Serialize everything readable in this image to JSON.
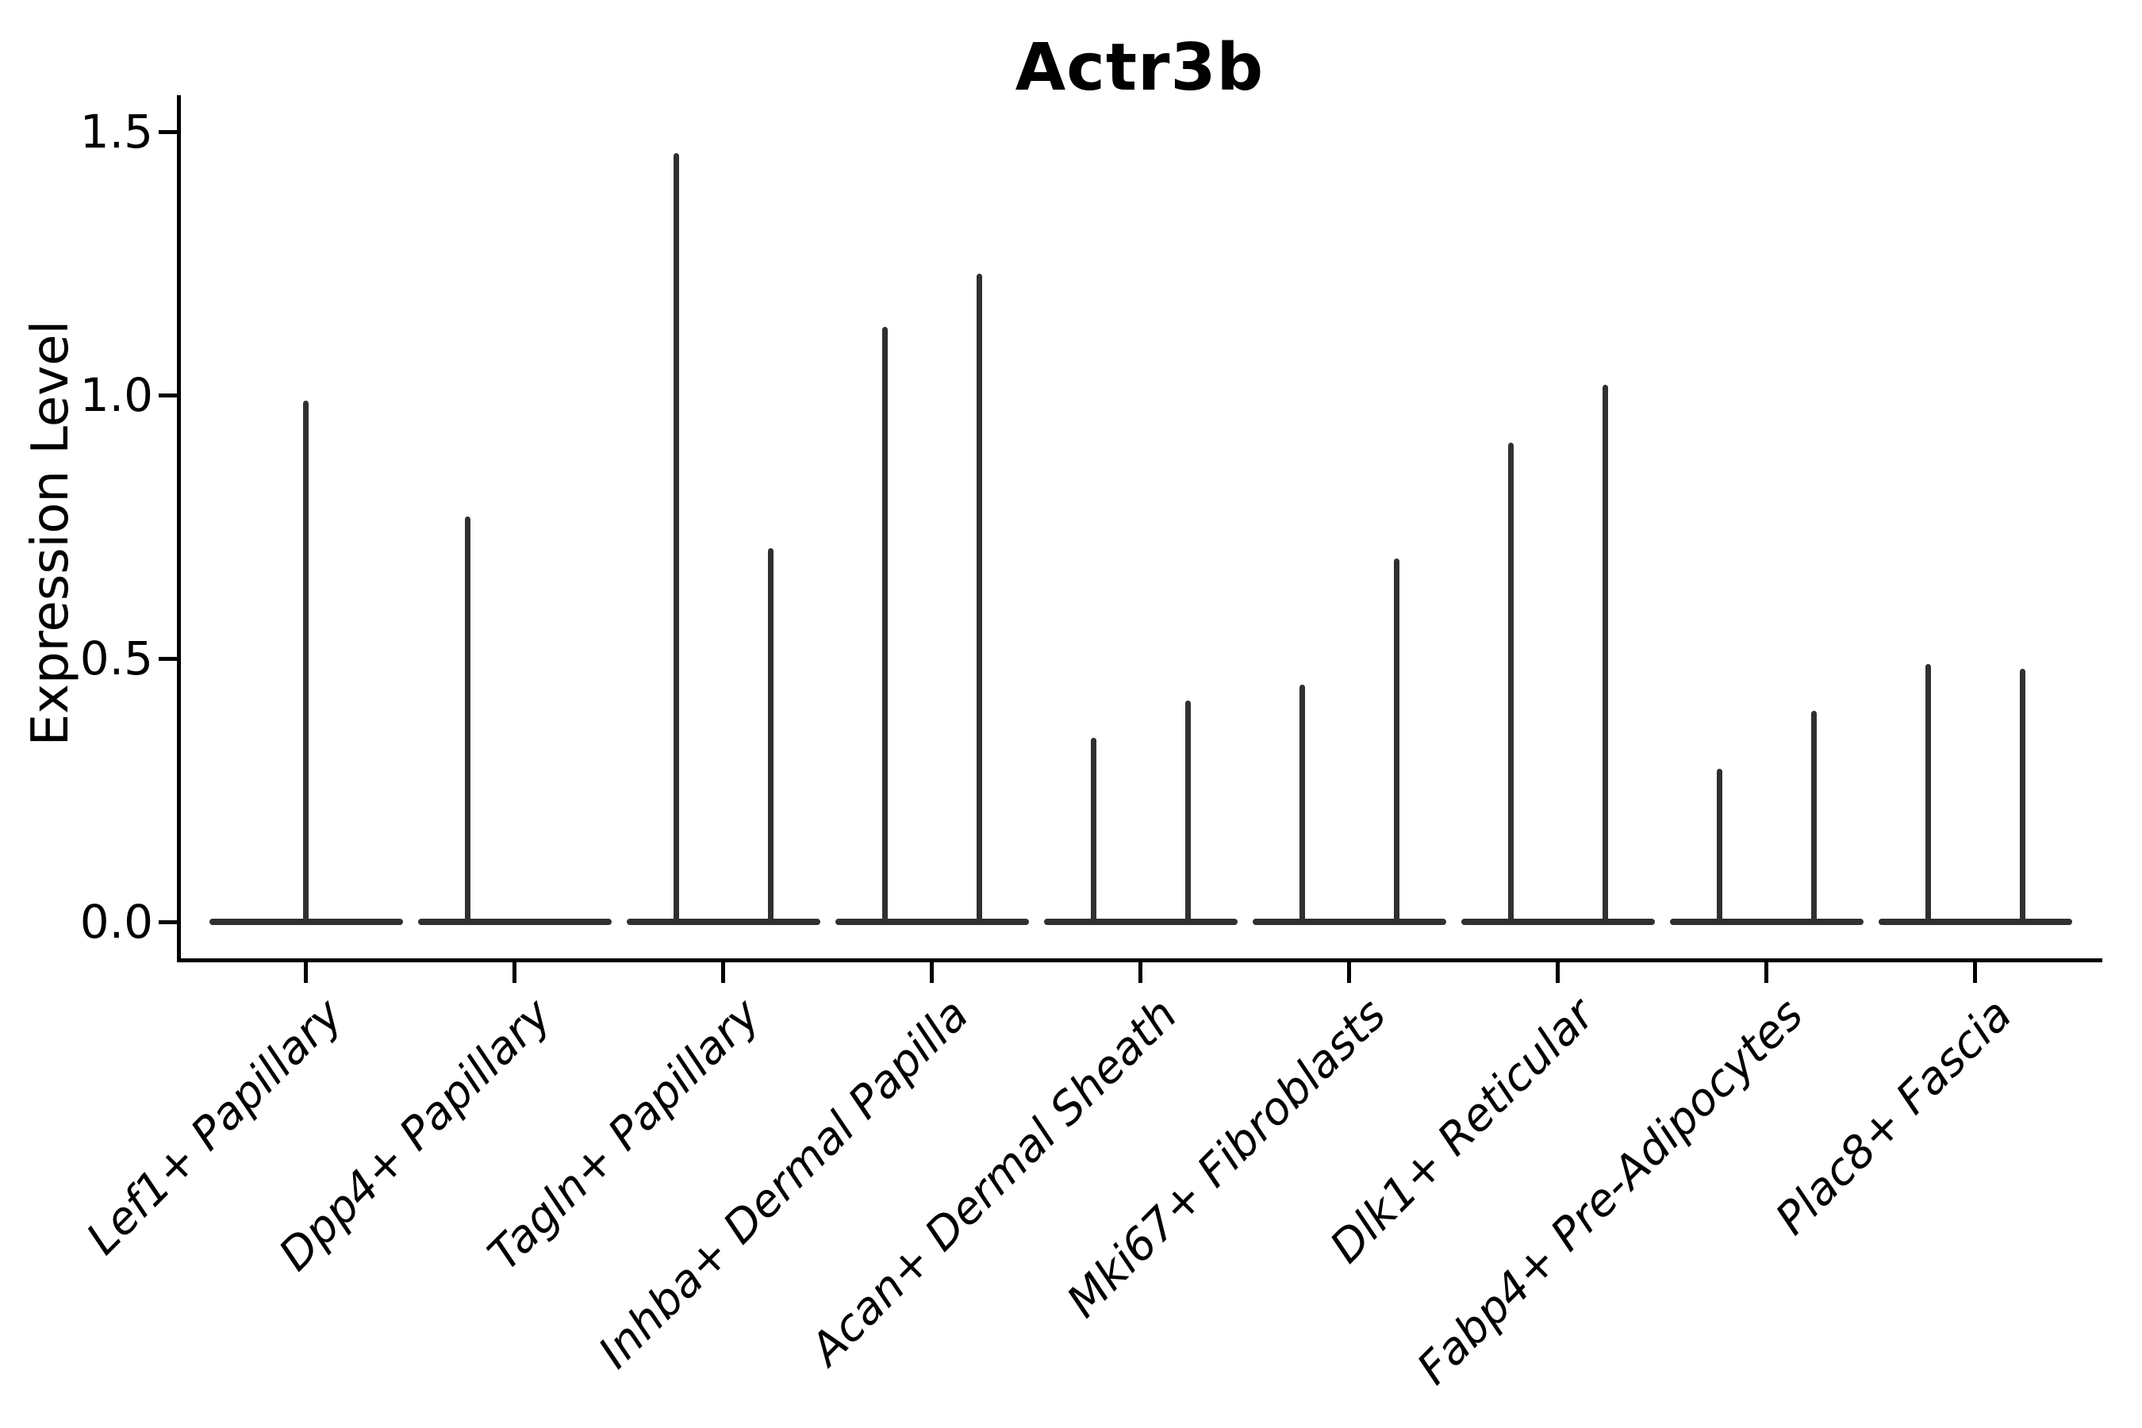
{
  "title": "Actr3b",
  "y_axis": {
    "label": "Expression Level"
  },
  "chart_data": {
    "type": "violin",
    "title": "Actr3b",
    "xlabel": "",
    "ylabel": "Expression Level",
    "yticks": [
      0.0,
      0.5,
      1.0,
      1.5
    ],
    "ylim": [
      -0.07,
      1.57
    ],
    "grid": false,
    "legend": "none",
    "line_color": "#303030",
    "note": "Violins are collapsed to a flat dash at 0 expression with a thin spike up to the maximum expression; most categories contain two side-by-side sub-violins",
    "categories": [
      "Lef1+ Papillary",
      "Dpp4+ Papillary",
      "Tagln+ Papillary",
      "Inhba+ Dermal Papilla",
      "Acan+ Dermal Sheath",
      "Mki67+ Fibroblasts",
      "Dlk1+ Reticular",
      "Fabp4+ Pre-Adipocytes",
      "Plac8+ Fascia"
    ],
    "violins": [
      {
        "category": "Lef1+ Papillary",
        "spikes": [
          {
            "pos": "center",
            "max": 0.99
          }
        ]
      },
      {
        "category": "Dpp4+ Papillary",
        "spikes": [
          {
            "pos": "left",
            "max": 0.77
          }
        ]
      },
      {
        "category": "Tagln+ Papillary",
        "spikes": [
          {
            "pos": "left",
            "max": 1.46
          },
          {
            "pos": "right",
            "max": 0.71
          }
        ]
      },
      {
        "category": "Inhba+ Dermal Papilla",
        "spikes": [
          {
            "pos": "left",
            "max": 1.13
          },
          {
            "pos": "right",
            "max": 1.23
          }
        ]
      },
      {
        "category": "Acan+ Dermal Sheath",
        "spikes": [
          {
            "pos": "left",
            "max": 0.35
          },
          {
            "pos": "right",
            "max": 0.42
          }
        ]
      },
      {
        "category": "Mki67+ Fibroblasts",
        "spikes": [
          {
            "pos": "left",
            "max": 0.45
          },
          {
            "pos": "right",
            "max": 0.69
          }
        ]
      },
      {
        "category": "Dlk1+ Reticular",
        "spikes": [
          {
            "pos": "left",
            "max": 0.91
          },
          {
            "pos": "right",
            "max": 1.02
          }
        ]
      },
      {
        "category": "Fabp4+ Pre-Adipocytes",
        "spikes": [
          {
            "pos": "left",
            "max": 0.29
          },
          {
            "pos": "right",
            "max": 0.4
          }
        ]
      },
      {
        "category": "Plac8+ Fascia",
        "spikes": [
          {
            "pos": "left",
            "max": 0.49
          },
          {
            "pos": "right",
            "max": 0.48
          }
        ]
      }
    ]
  }
}
